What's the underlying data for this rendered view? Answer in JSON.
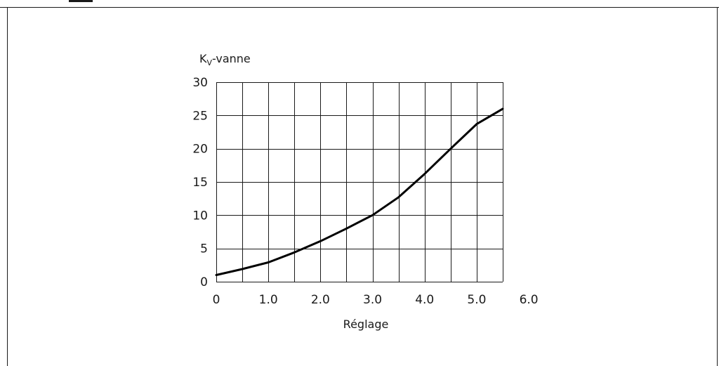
{
  "chart_data": {
    "type": "line",
    "title": "",
    "xlabel": "Réglage",
    "ylabel": {
      "main": "K",
      "sub": "V",
      "suffix": "-vanne"
    },
    "xlim": [
      0,
      5.5
    ],
    "ylim": [
      0,
      30
    ],
    "grid": true,
    "x_grid_step": 0.5,
    "y_grid_step": 5,
    "x_ticks": [
      {
        "value": 0,
        "label": "0"
      },
      {
        "value": 1,
        "label": "1.0"
      },
      {
        "value": 2,
        "label": "2.0"
      },
      {
        "value": 3,
        "label": "3.0"
      },
      {
        "value": 4,
        "label": "4.0"
      },
      {
        "value": 5,
        "label": "5.0"
      },
      {
        "value": 6,
        "label": "6.0"
      }
    ],
    "y_ticks": [
      {
        "value": 0,
        "label": "0"
      },
      {
        "value": 5,
        "label": "5"
      },
      {
        "value": 10,
        "label": "10"
      },
      {
        "value": 15,
        "label": "15"
      },
      {
        "value": 20,
        "label": "20"
      },
      {
        "value": 25,
        "label": "25"
      },
      {
        "value": 30,
        "label": "30"
      }
    ],
    "series": [
      {
        "color": "#000000",
        "x": [
          0,
          0.5,
          1.0,
          1.5,
          2.0,
          2.5,
          3.0,
          3.5,
          4.0,
          4.5,
          5.0,
          5.5
        ],
        "y": [
          1.0,
          1.9,
          2.9,
          4.4,
          6.1,
          8.0,
          10.0,
          12.7,
          16.2,
          20.0,
          23.7,
          26.0
        ]
      }
    ]
  },
  "colors": {
    "grid": "#1a1a1a",
    "line": "#000000",
    "text": "#1a1a1a",
    "background": "#ffffff"
  }
}
